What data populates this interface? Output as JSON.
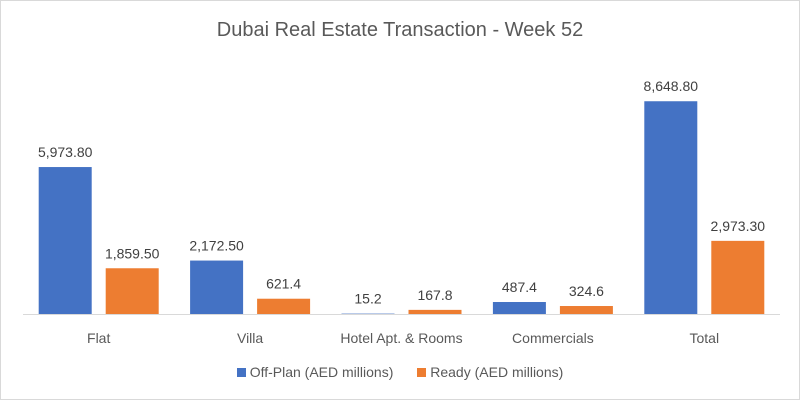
{
  "chart_data": {
    "type": "bar",
    "title": "Dubai Real Estate Transaction - Week 52",
    "categories": [
      "Flat",
      "Villa",
      "Hotel Apt. & Rooms",
      "Commercials",
      "Total"
    ],
    "series": [
      {
        "name": "Off-Plan (AED millions)",
        "color": "#4472C4",
        "values": [
          5973.8,
          2172.5,
          15.2,
          487.4,
          8648.8
        ],
        "labels": [
          "5,973.80",
          "2,172.50",
          "15.2",
          "487.4",
          "8,648.80"
        ]
      },
      {
        "name": "Ready (AED millions)",
        "color": "#ED7D31",
        "values": [
          1859.5,
          621.4,
          167.8,
          324.6,
          2973.3
        ],
        "labels": [
          "1,859.50",
          "621.4",
          "167.8",
          "324.6",
          "2,973.30"
        ]
      }
    ],
    "xlabel": "",
    "ylabel": "",
    "ylim": [
      0,
      10000
    ],
    "grid": false,
    "legend": "bottom"
  }
}
